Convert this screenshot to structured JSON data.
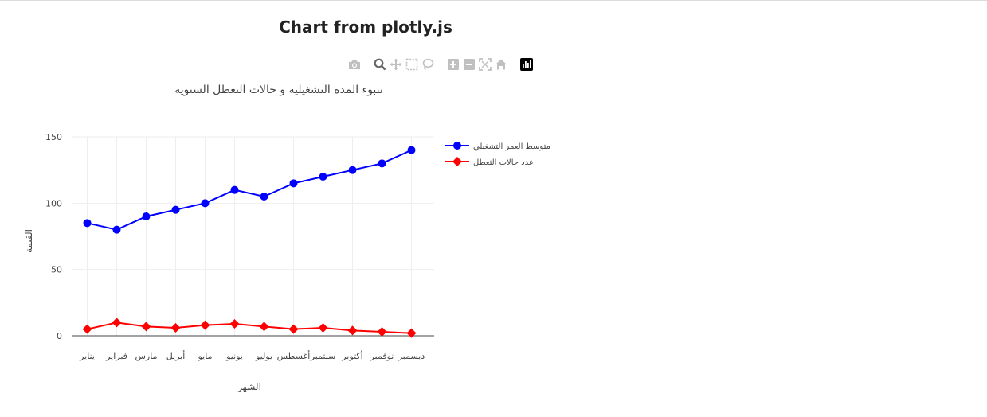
{
  "page": {
    "heading": "Chart from plotly.js"
  },
  "modebar": {
    "buttons": [
      {
        "name": "camera-icon",
        "color": "#c0c0c0"
      },
      {
        "name": "zoom-icon",
        "color": "#666666"
      },
      {
        "name": "pan-icon",
        "color": "#c0c0c0"
      },
      {
        "name": "box-select-icon",
        "color": "#c0c0c0"
      },
      {
        "name": "lasso-icon",
        "color": "#c0c0c0"
      },
      {
        "name": "zoom-in-icon",
        "color": "#c0c0c0"
      },
      {
        "name": "zoom-out-icon",
        "color": "#c0c0c0"
      },
      {
        "name": "autoscale-icon",
        "color": "#c0c0c0"
      },
      {
        "name": "reset-axes-icon",
        "color": "#c0c0c0"
      },
      {
        "name": "plotly-logo-icon",
        "color": "#000000"
      }
    ]
  },
  "chart_data": {
    "type": "line",
    "title": "تنبوء المدة التشغيلية و حالات التعطل السنوية",
    "xlabel": "الشهر",
    "ylabel": "القيمة",
    "categories": [
      "يناير",
      "فبراير",
      "مارس",
      "أبريل",
      "مايو",
      "يونيو",
      "يوليو",
      "أغسطس",
      "سبتمبر",
      "أكتوبر",
      "نوفمبر",
      "ديسمبر"
    ],
    "ylim": [
      0,
      150
    ],
    "yticks": [
      0,
      50,
      100,
      150
    ],
    "grid": true,
    "legend_position": "top-right",
    "series": [
      {
        "name": "متوسط العمر التشغيلي",
        "values": [
          85,
          80,
          90,
          95,
          100,
          110,
          105,
          115,
          120,
          125,
          130,
          140
        ],
        "color": "#0000ff",
        "marker": "circle"
      },
      {
        "name": "عدد حالات التعطل",
        "values": [
          5,
          10,
          7,
          6,
          8,
          9,
          7,
          5,
          6,
          4,
          3,
          2
        ],
        "color": "#ff0000",
        "marker": "diamond"
      }
    ]
  }
}
